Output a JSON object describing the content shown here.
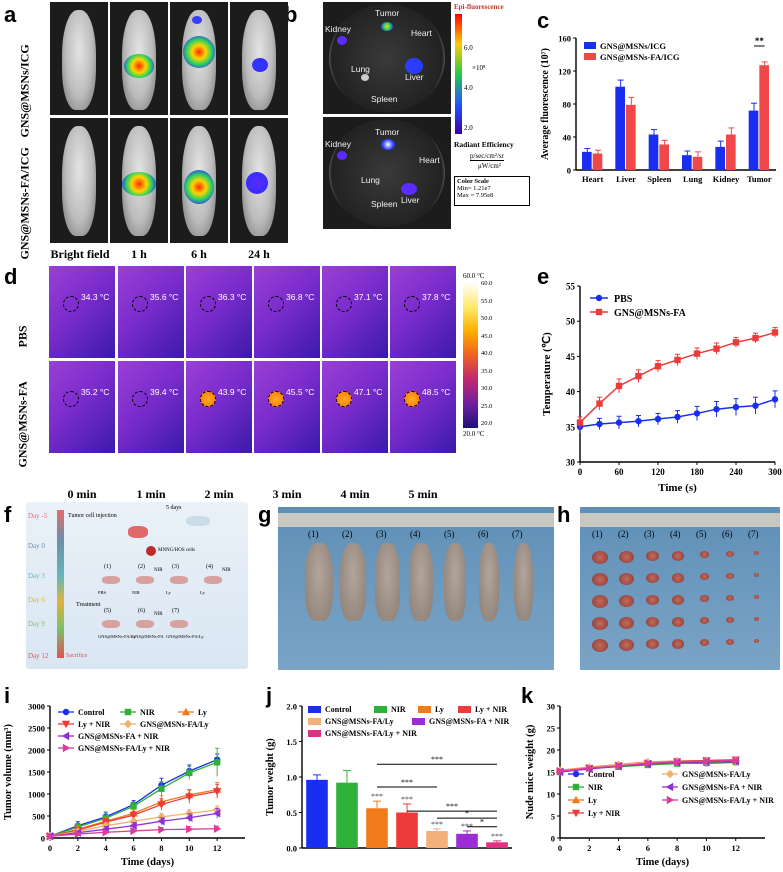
{
  "panel_labels": {
    "a": "a",
    "b": "b",
    "c": "c",
    "d": "d",
    "e": "e",
    "f": "f",
    "g": "g",
    "h": "h",
    "i": "i",
    "j": "j",
    "k": "k"
  },
  "panel_a": {
    "rows": [
      "GNS@MSNs/ICG",
      "GNS@MSNs-FA/ICG"
    ],
    "columns": [
      "Bright field",
      "1 h",
      "6 h",
      "24 h"
    ]
  },
  "panel_b": {
    "organs": [
      "Tumor",
      "Heart",
      "Liver",
      "Spleen",
      "Lung",
      "Kidney"
    ],
    "scale_title": "Epi-fluorescence",
    "scale_ticks": [
      "6.0",
      "4.0",
      "2.0"
    ],
    "scale_exp": "×10⁸",
    "radiant_title": "Radiant Efficiency",
    "radiant_unit_top": "p/sec/cm²/sr",
    "radiant_unit_bottom": "μW/cm²",
    "color_scale_title": "Color Scale",
    "color_scale_min": "Min= 1.21e7",
    "color_scale_max": "Max = 7.95e8"
  },
  "panel_d": {
    "rows": [
      "PBS",
      "GNS@MSNs-FA"
    ],
    "times": [
      "0 min",
      "1 min",
      "2 min",
      "3 min",
      "4 min",
      "5 min"
    ],
    "pbs_temps": [
      "34.3 °C",
      "35.6 °C",
      "36.3 °C",
      "36.8 °C",
      "37.1 °C",
      "37.8 °C"
    ],
    "gns_temps": [
      "35.2 °C",
      "39.4 °C",
      "43.9 °C",
      "45.5 °C",
      "47.1 °C",
      "48.5 °C"
    ],
    "scale_max": "60.0 °C",
    "scale_min": "20.0 °C",
    "scale_ticks": [
      "60.0",
      "55.0",
      "50.0",
      "45.0",
      "40.0",
      "35.0",
      "30.0",
      "25.0",
      "20.0"
    ]
  },
  "panel_f": {
    "days": [
      "Day -5",
      "Day 0",
      "Day 3",
      "Day 6",
      "Day 9",
      "Day 12"
    ],
    "day_colors": [
      "#e86a6a",
      "#6b8fa8",
      "#63b8b8",
      "#e0b23a",
      "#7cbf6a",
      "#e05252"
    ],
    "events": [
      "Tumor cell injection",
      "Sacrifice"
    ],
    "five_days": "5 days",
    "cells": "MNNG/HOS cells",
    "treatment": "Treatment",
    "groups": [
      "(1)",
      "(2)",
      "(3)",
      "(4)",
      "(5)",
      "(6)",
      "(7)"
    ],
    "group_names": [
      "PBS",
      "NIR",
      "Ly",
      "Ly",
      "GNS@MSNs-FA/Ly",
      "GNS@MSNs-FA",
      "GNS@MSNs-FA/Ly"
    ],
    "nir": "NIR"
  },
  "panel_g": {
    "groups": [
      "(1)",
      "(2)",
      "(3)",
      "(4)",
      "(5)",
      "(6)",
      "(7)"
    ]
  },
  "panel_h": {
    "groups": [
      "(1)",
      "(2)",
      "(3)",
      "(4)",
      "(5)",
      "(6)",
      "(7)"
    ]
  },
  "chart_data": [
    {
      "id": "c",
      "type": "bar",
      "ylabel": "Average fluorescence (10⁷)",
      "ylim": [
        0,
        160
      ],
      "yticks": [
        0,
        40,
        80,
        120,
        160
      ],
      "categories": [
        "Heart",
        "Liver",
        "Spleen",
        "Lung",
        "Kidney",
        "Tumor"
      ],
      "series": [
        {
          "name": "GNS@MSNs/ICG",
          "color": "#1a2ef0",
          "values": [
            22,
            101,
            43,
            18,
            28,
            72
          ],
          "errors": [
            4,
            8,
            6,
            5,
            7,
            9
          ]
        },
        {
          "name": "GNS@MSNs-FA/ICG",
          "color": "#f04848",
          "values": [
            20,
            79,
            31,
            16,
            43,
            127
          ],
          "errors": [
            4,
            9,
            5,
            6,
            8,
            4
          ]
        }
      ],
      "annotation": "**"
    },
    {
      "id": "e",
      "type": "line",
      "xlabel": "Time (s)",
      "ylabel": "Temperature (℃)",
      "xlim": [
        0,
        300
      ],
      "ylim": [
        30,
        55
      ],
      "xticks": [
        0,
        60,
        120,
        180,
        240,
        300
      ],
      "yticks": [
        30,
        35,
        40,
        45,
        50,
        55
      ],
      "x": [
        0,
        30,
        60,
        90,
        120,
        150,
        180,
        210,
        240,
        270,
        300
      ],
      "series": [
        {
          "name": "PBS",
          "color": "#1a2ef0",
          "values": [
            35.0,
            35.4,
            35.6,
            35.8,
            36.1,
            36.4,
            36.9,
            37.5,
            37.8,
            38.0,
            38.9
          ],
          "errors": [
            0.9,
            0.8,
            0.9,
            0.8,
            0.8,
            0.9,
            1.0,
            1.1,
            1.2,
            1.2,
            1.2
          ]
        },
        {
          "name": "GNS@MSNs-FA",
          "color": "#ec3b3b",
          "values": [
            35.6,
            38.3,
            40.8,
            42.2,
            43.6,
            44.5,
            45.4,
            46.1,
            47.0,
            47.6,
            48.4
          ],
          "errors": [
            0.8,
            0.9,
            1.0,
            0.9,
            0.8,
            0.8,
            0.8,
            0.8,
            0.7,
            0.7,
            0.7
          ]
        }
      ]
    },
    {
      "id": "i",
      "type": "line",
      "xlabel": "Time (days)",
      "ylabel": "Tumor volume (mm³)",
      "xlim": [
        0,
        14
      ],
      "ylim": [
        0,
        3000
      ],
      "xticks": [
        0,
        2,
        4,
        6,
        8,
        10,
        12
      ],
      "yticks": [
        0,
        500,
        1000,
        1500,
        2000,
        2500,
        3000
      ],
      "x": [
        0,
        2,
        4,
        6,
        8,
        10,
        12
      ],
      "series": [
        {
          "name": "Control",
          "color": "#1a2ef0",
          "marker": "circle",
          "values": [
            40,
            280,
            480,
            760,
            1200,
            1520,
            1780
          ],
          "errors": [
            10,
            90,
            110,
            90,
            160,
            140,
            130
          ]
        },
        {
          "name": "NIR",
          "color": "#2fb03a",
          "marker": "square",
          "values": [
            40,
            250,
            450,
            720,
            1120,
            1480,
            1720
          ],
          "errors": [
            10,
            80,
            100,
            90,
            160,
            150,
            320
          ]
        },
        {
          "name": "Ly",
          "color": "#f07b1a",
          "marker": "triangle",
          "values": [
            40,
            200,
            380,
            560,
            820,
            980,
            1100
          ],
          "errors": [
            10,
            70,
            90,
            90,
            140,
            120,
            160
          ]
        },
        {
          "name": "Ly + NIR",
          "color": "#ec3b3b",
          "marker": "tri-down",
          "values": [
            40,
            180,
            360,
            520,
            760,
            940,
            1060
          ],
          "errors": [
            10,
            60,
            80,
            90,
            130,
            150,
            160
          ]
        },
        {
          "name": "GNS@MSNs-FA/Ly",
          "color": "#f0b070",
          "marker": "diamond",
          "values": [
            40,
            150,
            280,
            380,
            480,
            560,
            640
          ],
          "errors": [
            10,
            40,
            60,
            60,
            80,
            90,
            90
          ]
        },
        {
          "name": "GNS@MSNs-FA + NIR",
          "color": "#9030d8",
          "marker": "tri-left",
          "values": [
            40,
            120,
            200,
            280,
            380,
            460,
            560
          ],
          "errors": [
            10,
            40,
            60,
            70,
            80,
            90,
            110
          ]
        },
        {
          "name": "GNS@MSNs-FA/Ly + NIR",
          "color": "#e03a9a",
          "marker": "tri-right",
          "values": [
            40,
            90,
            130,
            160,
            190,
            200,
            210
          ],
          "errors": [
            10,
            30,
            40,
            40,
            50,
            60,
            60
          ]
        }
      ]
    },
    {
      "id": "j",
      "type": "bar",
      "ylabel": "Tumor weight (g)",
      "ylim": [
        0,
        2.0
      ],
      "yticks": [
        "0.0",
        "0.5",
        "1.0",
        "1.5",
        "2.0"
      ],
      "categories": [
        "Control",
        "NIR",
        "Ly",
        "Ly + NIR",
        "GNS@MSNs-FA/Ly",
        "GNS@MSNs-FA + NIR",
        "GNS@MSNs-FA/Ly + NIR"
      ],
      "colors": [
        "#1a2ef0",
        "#2fb03a",
        "#f07b1a",
        "#ec3b3b",
        "#f2b07a",
        "#9b2cd6",
        "#e0307f"
      ],
      "values": [
        0.96,
        0.92,
        0.56,
        0.5,
        0.24,
        0.2,
        0.08
      ],
      "errors": [
        0.07,
        0.17,
        0.1,
        0.12,
        0.03,
        0.04,
        0.02
      ],
      "stars": [
        "",
        "",
        "***",
        "***",
        "***",
        "***",
        "***"
      ],
      "brackets": [
        {
          "from": 2,
          "to": 6,
          "label": "***"
        },
        {
          "from": 2,
          "to": 4,
          "label": "***"
        },
        {
          "from": 4,
          "to": 6,
          "label": "*"
        },
        {
          "from": 5,
          "to": 6,
          "label": "*"
        },
        {
          "from": 3,
          "to": 6,
          "label": "***"
        }
      ]
    },
    {
      "id": "k",
      "type": "line",
      "xlabel": "Time (days)",
      "ylabel": "Nude mice weight (g)",
      "xlim": [
        0,
        14
      ],
      "ylim": [
        0,
        30
      ],
      "xticks": [
        0,
        2,
        4,
        6,
        8,
        10,
        12
      ],
      "yticks": [
        0,
        5,
        10,
        15,
        20,
        25,
        30
      ],
      "x": [
        0,
        2,
        4,
        6,
        8,
        10,
        12
      ],
      "series": [
        {
          "name": "Control",
          "color": "#1a2ef0",
          "marker": "circle",
          "values": [
            15.2,
            16.0,
            16.4,
            16.8,
            17.0,
            17.0,
            17.2
          ]
        },
        {
          "name": "NIR",
          "color": "#2fb03a",
          "marker": "square",
          "values": [
            15.0,
            15.8,
            16.2,
            16.6,
            16.9,
            17.1,
            17.3
          ]
        },
        {
          "name": "Ly",
          "color": "#f07b1a",
          "marker": "triangle",
          "values": [
            15.4,
            16.1,
            16.7,
            17.3,
            17.5,
            17.6,
            17.7
          ]
        },
        {
          "name": "Ly + NIR",
          "color": "#ec3b3b",
          "marker": "tri-down",
          "values": [
            15.1,
            15.9,
            16.5,
            17.0,
            17.4,
            17.6,
            17.8
          ]
        },
        {
          "name": "GNS@MSNs-FA/Ly",
          "color": "#f0b070",
          "marker": "diamond",
          "values": [
            15.3,
            16.0,
            16.6,
            17.2,
            17.3,
            17.4,
            17.5
          ]
        },
        {
          "name": "GNS@MSNs-FA + NIR",
          "color": "#9030d8",
          "marker": "tri-left",
          "values": [
            15.0,
            15.7,
            16.3,
            16.8,
            17.1,
            17.3,
            17.4
          ]
        },
        {
          "name": "GNS@MSNs-FA/Ly + NIR",
          "color": "#e03a9a",
          "marker": "tri-right",
          "values": [
            15.2,
            15.9,
            16.4,
            17.0,
            17.3,
            17.5,
            17.6
          ]
        }
      ]
    }
  ]
}
